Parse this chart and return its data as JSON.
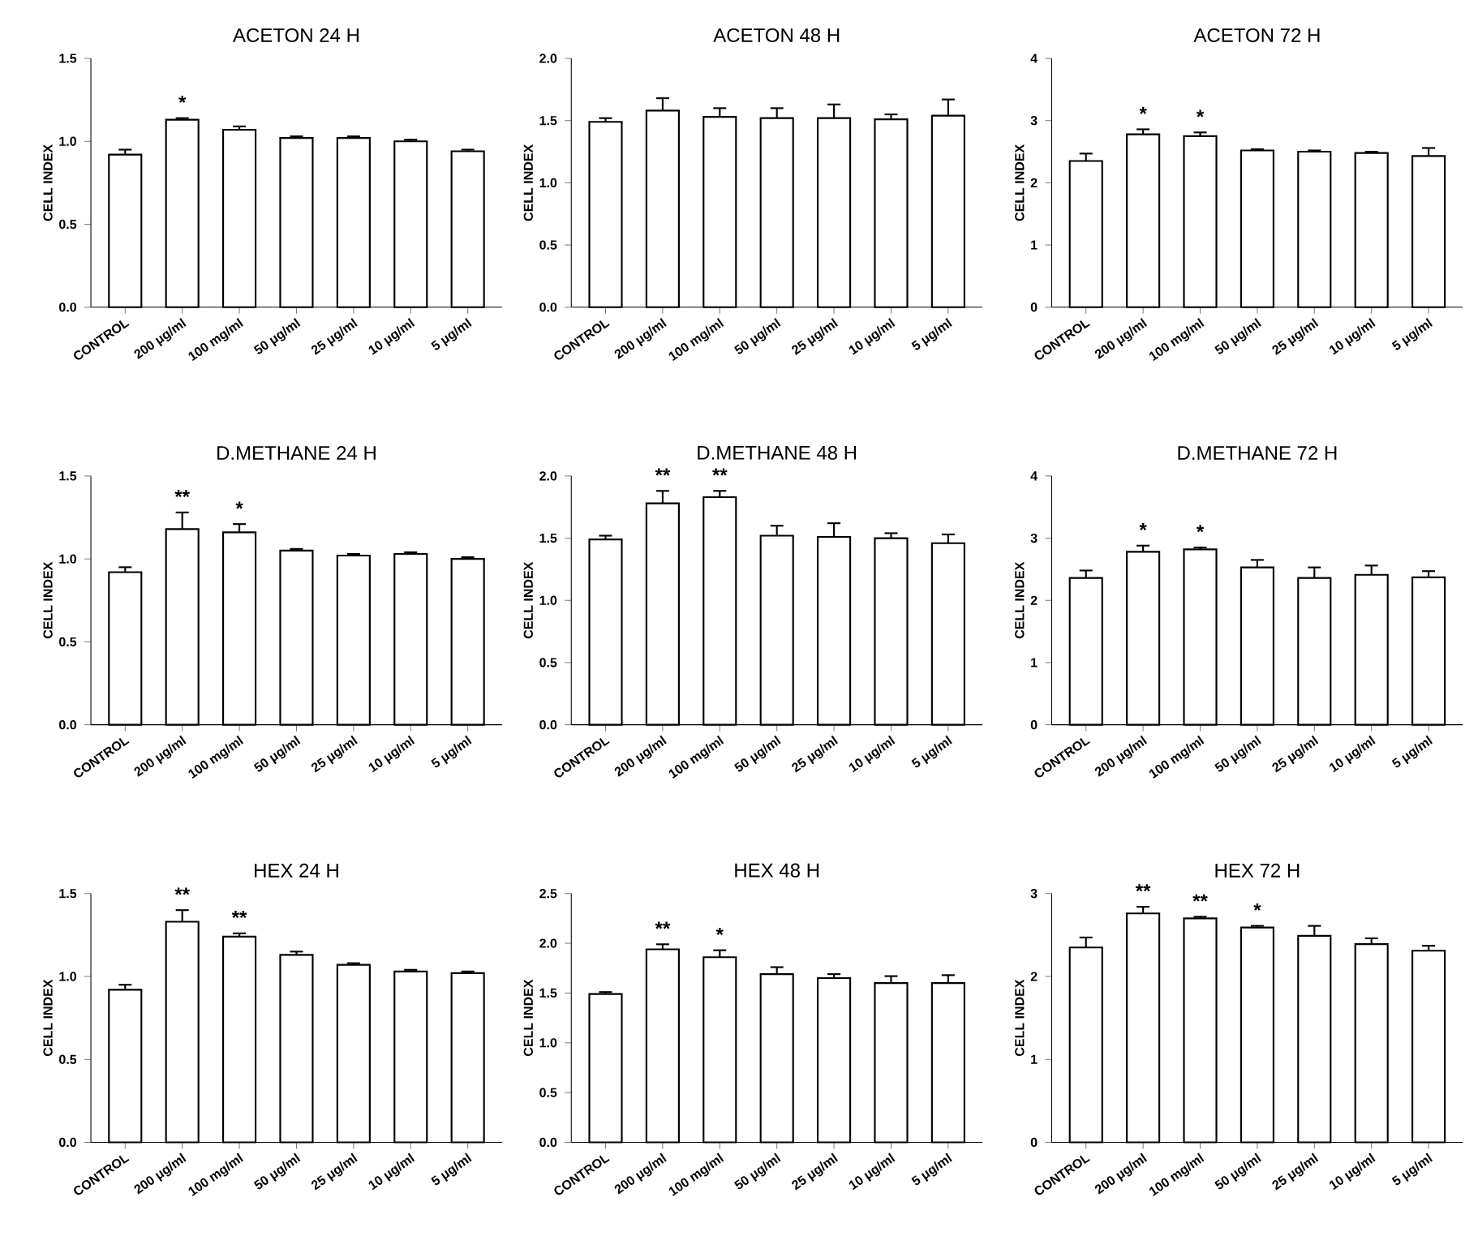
{
  "chart_data": [
    {
      "type": "bar",
      "title": "ACETON 24 H",
      "ylabel": "CELL INDEX",
      "categories": [
        "CONTROL",
        "200 μg/ml",
        "100 mg/ml",
        "50 μg/ml",
        "25 μg/ml",
        "10 μg/ml",
        "5 μg/ml"
      ],
      "values": [
        0.92,
        1.13,
        1.07,
        1.02,
        1.02,
        1.0,
        0.94
      ],
      "errors": [
        0.03,
        0.01,
        0.02,
        0.01,
        0.01,
        0.01,
        0.01
      ],
      "color": "#ffffff",
      "ylim": [
        0,
        1.5
      ],
      "yticks": [
        {
          "value": 0,
          "label": "0.0"
        },
        0.5,
        {
          "value": 1,
          "label": "1.0"
        },
        1.5
      ],
      "annotations": [
        {
          "text": "*",
          "x": "200 μg/ml",
          "y": 1.14
        }
      ]
    },
    {
      "type": "bar",
      "title": "ACETON  48 H",
      "ylabel": "CELL INDEX",
      "categories": [
        "CONTROL",
        "200 μg/ml",
        "100 mg/ml",
        "50 μg/ml",
        "25 μg/ml",
        "10 μg/ml",
        "5 μg/ml"
      ],
      "values": [
        1.49,
        1.58,
        1.53,
        1.52,
        1.52,
        1.51,
        1.54
      ],
      "errors": [
        0.03,
        0.1,
        0.07,
        0.08,
        0.11,
        0.04,
        0.13
      ],
      "color": "#ffffff",
      "ylim": [
        0,
        2
      ],
      "yticks": [
        {
          "value": 0,
          "label": "0.0"
        },
        0.5,
        {
          "value": 1,
          "label": "1.0"
        },
        1.5,
        {
          "value": 2,
          "label": "2.0"
        }
      ]
    },
    {
      "type": "bar",
      "title": "ACETON  72 H",
      "ylabel": "CELL INDEX",
      "categories": [
        "CONTROL",
        "200 μg/ml",
        "100 mg/ml",
        "50 μg/ml",
        "25 μg/ml",
        "10 μg/ml",
        "5 μg/ml"
      ],
      "values": [
        2.35,
        2.78,
        2.75,
        2.52,
        2.5,
        2.48,
        2.43
      ],
      "errors": [
        0.12,
        0.08,
        0.06,
        0.02,
        0.02,
        0.02,
        0.13
      ],
      "color": "#ffffff",
      "ylim": [
        0,
        4
      ],
      "yticks": [
        0,
        1,
        2,
        3,
        4
      ],
      "annotations": [
        {
          "text": "*",
          "x": "200 μg/ml",
          "y": 2.86
        },
        {
          "text": "*",
          "x": "100 mg/ml",
          "y": 2.81
        }
      ]
    },
    {
      "type": "bar",
      "title": "D.METHANE  24 H",
      "ylabel": "CELL INDEX",
      "categories": [
        "CONTROL",
        "200 μg/ml",
        "100 mg/ml",
        "50 μg/ml",
        "25 μg/ml",
        "10 μg/ml",
        "5 μg/ml"
      ],
      "values": [
        0.92,
        1.18,
        1.16,
        1.05,
        1.02,
        1.03,
        1.0
      ],
      "errors": [
        0.03,
        0.1,
        0.05,
        0.01,
        0.01,
        0.01,
        0.01
      ],
      "color": "#ffffff",
      "ylim": [
        0,
        1.5
      ],
      "yticks": [
        {
          "value": 0,
          "label": "0.0"
        },
        0.5,
        {
          "value": 1,
          "label": "1.0"
        },
        1.5
      ],
      "annotations": [
        {
          "text": "**",
          "x": "200 μg/ml",
          "y": 1.28
        },
        {
          "text": "*",
          "x": "100 mg/ml",
          "y": 1.21
        }
      ]
    },
    {
      "type": "bar",
      "title": "D.METHANE 48 H",
      "ylabel": "CELL INDEX",
      "categories": [
        "CONTROL",
        "200 μg/ml",
        "100 mg/ml",
        "50 μg/ml",
        "25 μg/ml",
        "10 μg/ml",
        "5 μg/ml"
      ],
      "values": [
        1.49,
        1.78,
        1.83,
        1.52,
        1.51,
        1.5,
        1.46
      ],
      "errors": [
        0.03,
        0.1,
        0.05,
        0.08,
        0.11,
        0.04,
        0.07
      ],
      "color": "#ffffff",
      "ylim": [
        0,
        2
      ],
      "yticks": [
        {
          "value": 0,
          "label": "0.0"
        },
        0.5,
        {
          "value": 1,
          "label": "1.0"
        },
        1.5,
        {
          "value": 2,
          "label": "2.0"
        }
      ],
      "annotations": [
        {
          "text": "**",
          "x": "200 μg/ml",
          "y": 1.88
        },
        {
          "text": "**",
          "x": "100 mg/ml",
          "y": 1.88
        }
      ]
    },
    {
      "type": "bar",
      "title": "D.METHANE 72 H",
      "ylabel": "CELL INDEX",
      "categories": [
        "CONTROL",
        "200 μg/ml",
        "100 mg/ml",
        "50 μg/ml",
        "25 μg/ml",
        "10 μg/ml",
        "5 μg/ml"
      ],
      "values": [
        2.36,
        2.78,
        2.82,
        2.53,
        2.36,
        2.41,
        2.37
      ],
      "errors": [
        0.12,
        0.1,
        0.03,
        0.12,
        0.17,
        0.15,
        0.1
      ],
      "color": "#ffffff",
      "ylim": [
        0,
        4
      ],
      "yticks": [
        0,
        1,
        2,
        3,
        4
      ],
      "annotations": [
        {
          "text": "*",
          "x": "200 μg/ml",
          "y": 2.88
        },
        {
          "text": "*",
          "x": "100 mg/ml",
          "y": 2.85
        }
      ]
    },
    {
      "type": "bar",
      "title": "HEX 24 H",
      "ylabel": "CELL INDEX",
      "categories": [
        "CONTROL",
        "200 μg/ml",
        "100 mg/ml",
        "50 μg/ml",
        "25 μg/ml",
        "10 μg/ml",
        "5 μg/ml"
      ],
      "values": [
        0.92,
        1.33,
        1.24,
        1.13,
        1.07,
        1.03,
        1.02
      ],
      "errors": [
        0.03,
        0.07,
        0.02,
        0.02,
        0.01,
        0.01,
        0.01
      ],
      "color": "#ffffff",
      "ylim": [
        0,
        1.5
      ],
      "yticks": [
        {
          "value": 0,
          "label": "0.0"
        },
        0.5,
        {
          "value": 1,
          "label": "1.0"
        },
        1.5
      ],
      "annotations": [
        {
          "text": "**",
          "x": "200 μg/ml",
          "y": 1.4
        },
        {
          "text": "**",
          "x": "100 mg/ml",
          "y": 1.26
        }
      ]
    },
    {
      "type": "bar",
      "title": "HEX 48 H",
      "ylabel": "CELL INDEX",
      "categories": [
        "CONTROL",
        "200 μg/ml",
        "100 mg/ml",
        "50 μg/ml",
        "25 μg/ml",
        "10 μg/ml",
        "5 μg/ml"
      ],
      "values": [
        1.49,
        1.94,
        1.86,
        1.69,
        1.65,
        1.6,
        1.6
      ],
      "errors": [
        0.02,
        0.05,
        0.07,
        0.07,
        0.04,
        0.07,
        0.08
      ],
      "color": "#ffffff",
      "ylim": [
        0,
        2.5
      ],
      "yticks": [
        {
          "value": 0,
          "label": "0.0"
        },
        0.5,
        {
          "value": 1,
          "label": "1.0"
        },
        1.5,
        {
          "value": 2,
          "label": "2.0"
        },
        2.5
      ],
      "annotations": [
        {
          "text": "**",
          "x": "200 μg/ml",
          "y": 1.99
        },
        {
          "text": "*",
          "x": "100 mg/ml",
          "y": 1.93
        }
      ]
    },
    {
      "type": "bar",
      "title": "HEX 72 H",
      "ylabel": "CELL INDEX",
      "categories": [
        "CONTROL",
        "200 μg/ml",
        "100 mg/ml",
        "50 μg/ml",
        "25 μg/ml",
        "10 μg/ml",
        "5 μg/ml"
      ],
      "values": [
        2.35,
        2.76,
        2.7,
        2.59,
        2.49,
        2.39,
        2.31
      ],
      "errors": [
        0.12,
        0.08,
        0.02,
        0.02,
        0.12,
        0.07,
        0.06
      ],
      "color": "#ffffff",
      "ylim": [
        0,
        3
      ],
      "yticks": [
        0,
        1,
        2,
        3
      ],
      "annotations": [
        {
          "text": "**",
          "x": "200 μg/ml",
          "y": 2.84
        },
        {
          "text": "**",
          "x": "100 mg/ml",
          "y": 2.72
        },
        {
          "text": "*",
          "x": "50 μg/ml",
          "y": 2.61
        }
      ]
    }
  ]
}
